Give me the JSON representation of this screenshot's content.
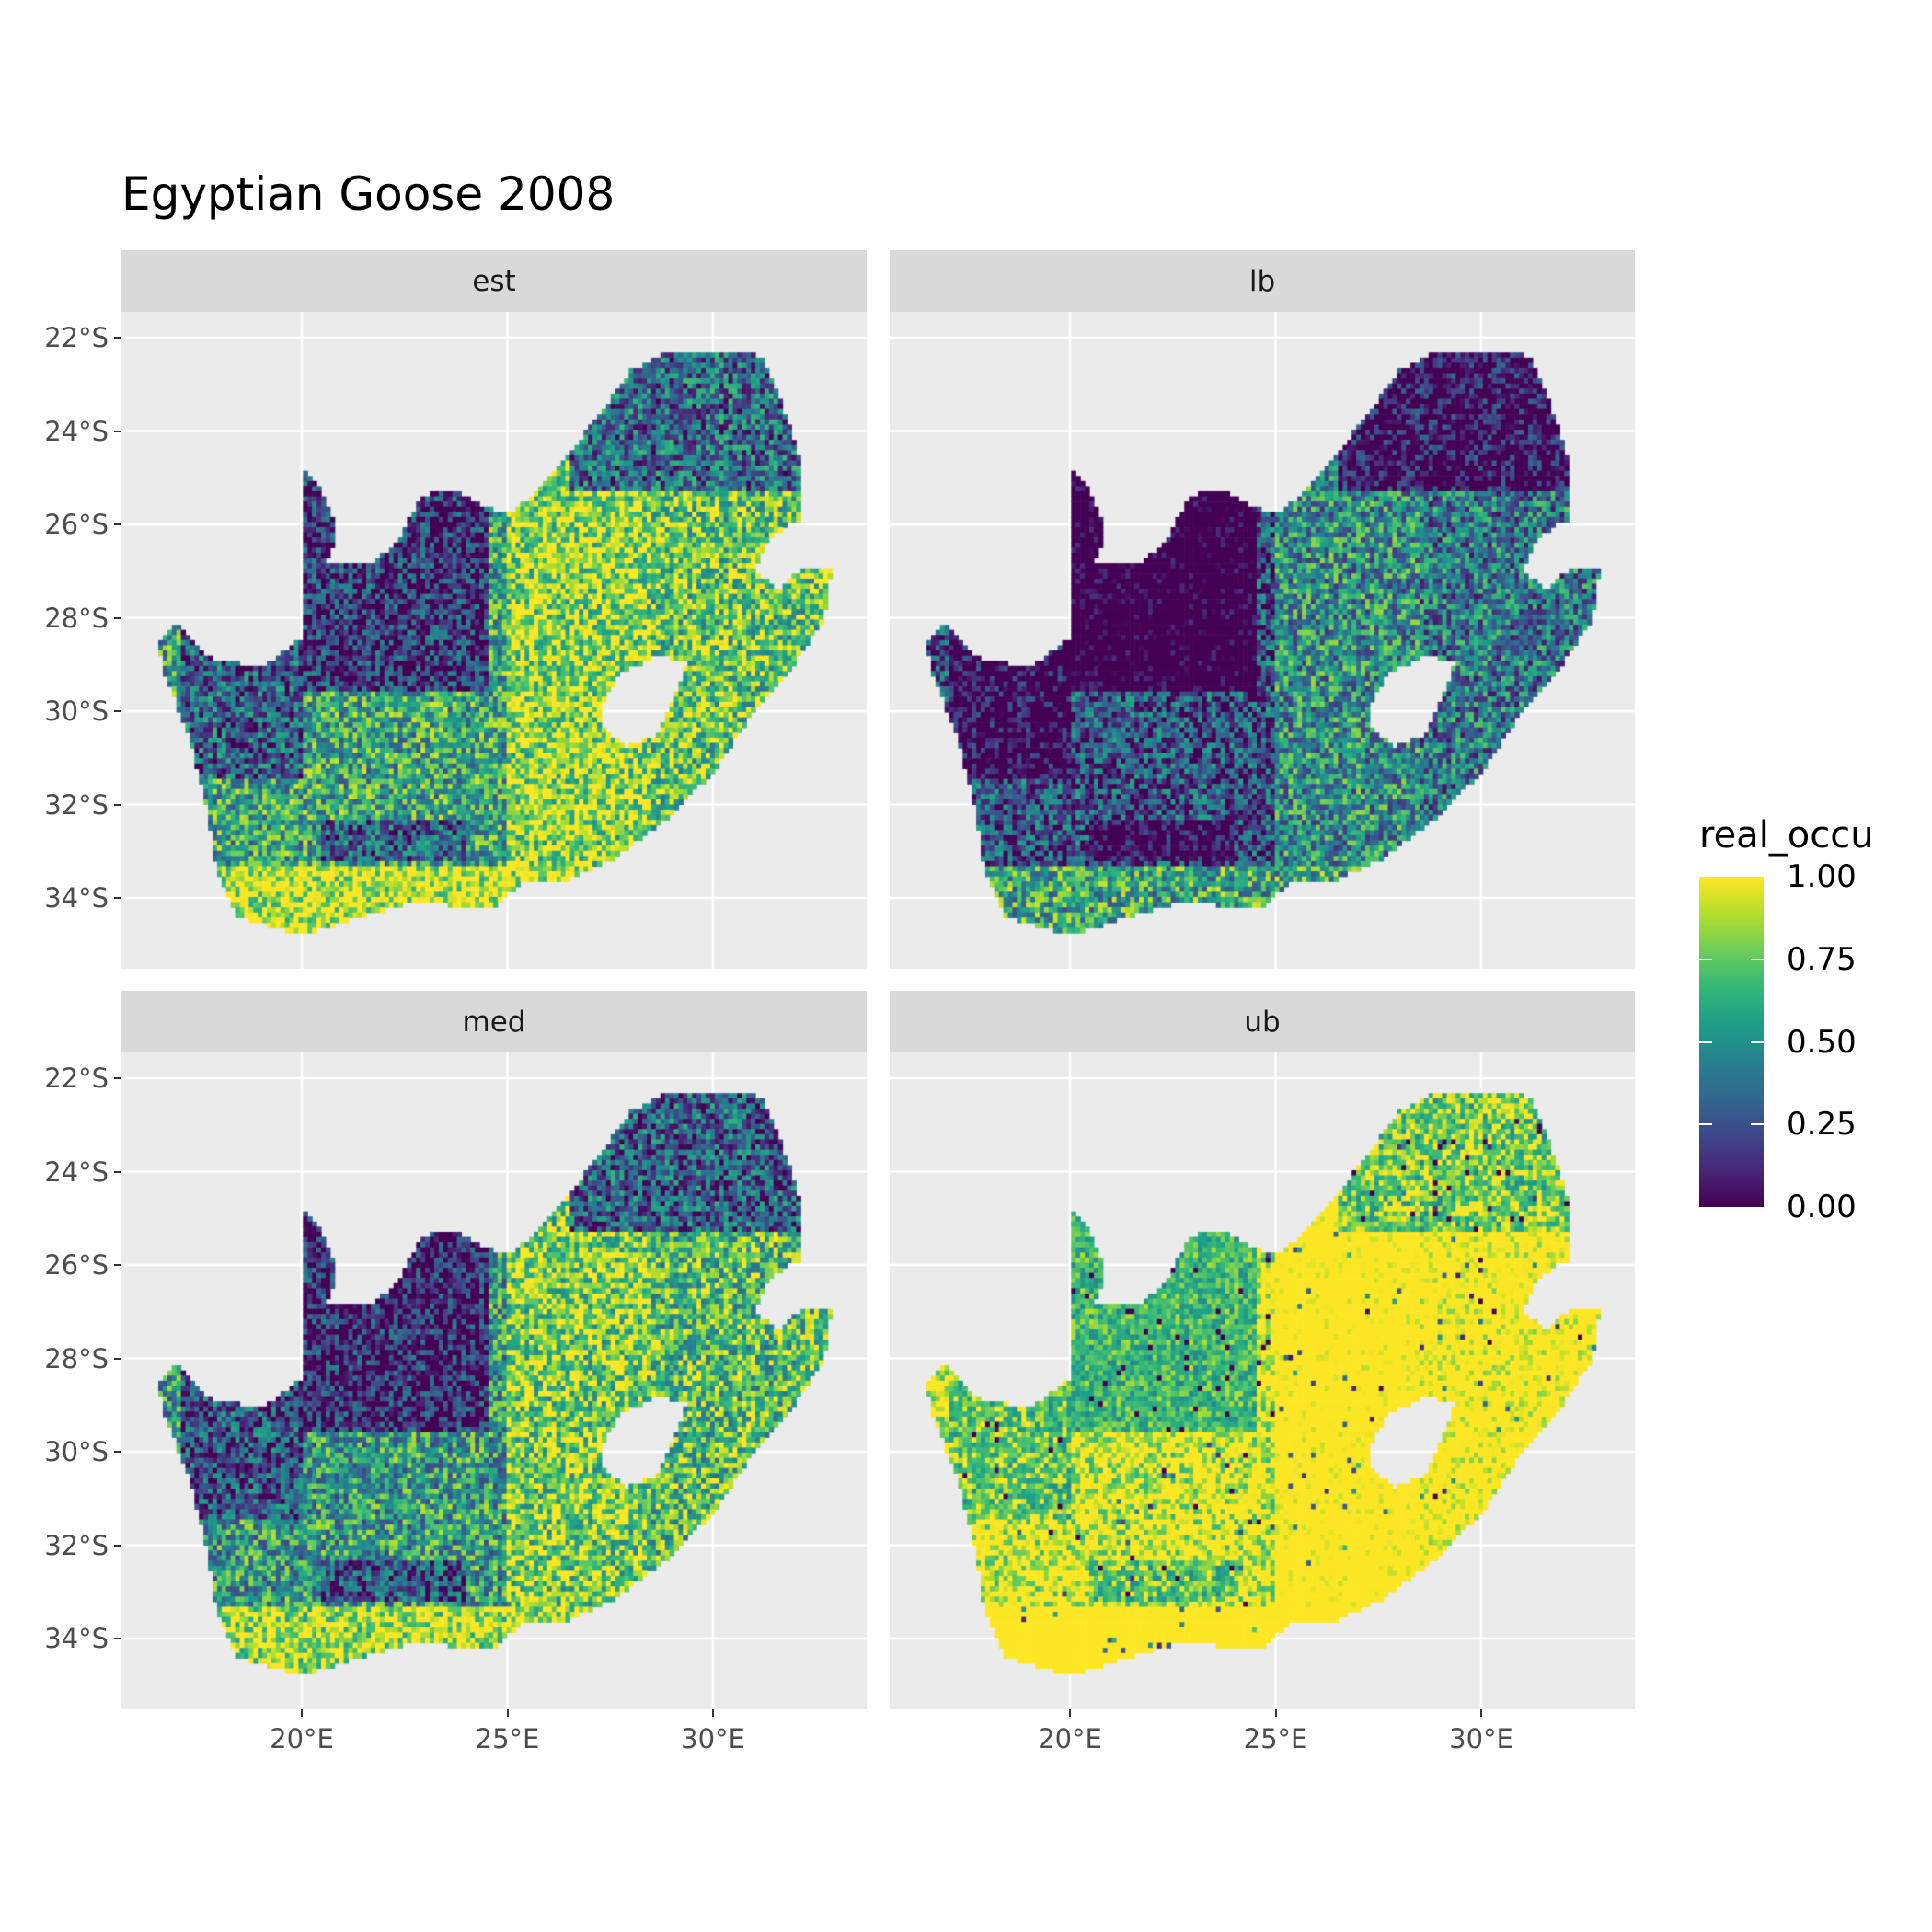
{
  "chart_data": {
    "type": "heatmap",
    "title": "Egyptian Goose 2008",
    "facets": [
      "est",
      "lb",
      "med",
      "ub"
    ],
    "x_ticks": [
      "20°E",
      "25°E",
      "30°E"
    ],
    "x_tick_values": [
      20,
      25,
      30
    ],
    "y_ticks": [
      "22°S",
      "24°S",
      "26°S",
      "28°S",
      "30°S",
      "32°S",
      "34°S"
    ],
    "y_tick_values": [
      -22,
      -24,
      -26,
      -28,
      -30,
      -32,
      -34
    ],
    "xlim": [
      15.6,
      33.7
    ],
    "ylim": [
      -35.5,
      -20.5
    ],
    "grid": true,
    "legend": {
      "title": "real_occu",
      "placement": "right",
      "labels": [
        "1.00",
        "0.75",
        "0.50",
        "0.25",
        "0.00"
      ],
      "values": [
        1.0,
        0.75,
        0.5,
        0.25,
        0.0
      ],
      "colormap": "viridis",
      "range": [
        0,
        1
      ]
    }
  },
  "colors": {
    "panel_background": "#ebebeb",
    "strip_background": "#d9d9d9",
    "grid": "#ffffff",
    "viridis_low": "#440154",
    "viridis_mid": "#21918c",
    "viridis_high": "#fde725"
  }
}
